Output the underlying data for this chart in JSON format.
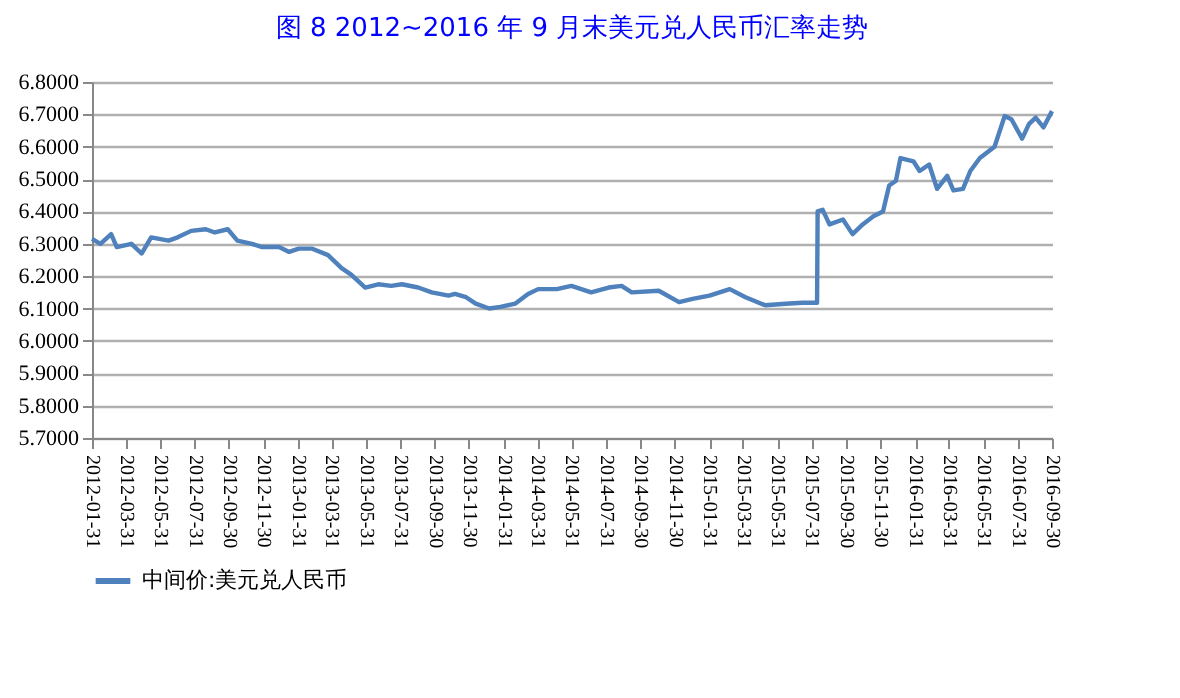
{
  "chart_data": {
    "type": "line",
    "title": "图 8   2012~2016 年 9 月末美元兑人民币汇率走势",
    "x": [
      "2012-01-31",
      "2012-02-15",
      "2012-03-05",
      "2012-03-15",
      "2012-04-10",
      "2012-04-28",
      "2012-05-15",
      "2012-06-15",
      "2012-07-01",
      "2012-07-25",
      "2012-08-20",
      "2012-09-05",
      "2012-09-28",
      "2012-10-15",
      "2012-11-10",
      "2012-11-28",
      "2012-12-28",
      "2013-01-15",
      "2013-02-01",
      "2013-02-25",
      "2013-03-25",
      "2013-04-18",
      "2013-05-05",
      "2013-05-30",
      "2013-06-22",
      "2013-07-15",
      "2013-08-03",
      "2013-09-01",
      "2013-09-25",
      "2013-10-25",
      "2013-11-05",
      "2013-11-25",
      "2013-12-12",
      "2014-01-05",
      "2014-01-25",
      "2014-02-20",
      "2014-03-15",
      "2014-04-02",
      "2014-05-05",
      "2014-05-31",
      "2014-07-05",
      "2014-08-05",
      "2014-08-28",
      "2014-09-15",
      "2014-11-02",
      "2014-12-08",
      "2015-01-01",
      "2015-01-31",
      "2015-03-08",
      "2015-04-05",
      "2015-05-10",
      "2015-06-15",
      "2015-07-15",
      "2015-08-10",
      "2015-08-11",
      "2015-08-20",
      "2015-09-01",
      "2015-09-25",
      "2015-10-12",
      "2015-10-30",
      "2015-11-18",
      "2015-12-05",
      "2015-12-16",
      "2015-12-28",
      "2016-01-05",
      "2016-01-28",
      "2016-02-08",
      "2016-02-25",
      "2016-03-10",
      "2016-03-28",
      "2016-04-08",
      "2016-04-25",
      "2016-05-08",
      "2016-05-25",
      "2016-06-20",
      "2016-07-08",
      "2016-07-20",
      "2016-08-08",
      "2016-08-20",
      "2016-09-01",
      "2016-09-15",
      "2016-09-30"
    ],
    "series": [
      {
        "name": "中间价:美元兑人民币",
        "color": "#4f81bd",
        "values": [
          6.315,
          6.3,
          6.33,
          6.29,
          6.3,
          6.27,
          6.32,
          6.31,
          6.32,
          6.34,
          6.345,
          6.335,
          6.345,
          6.31,
          6.3,
          6.29,
          6.29,
          6.275,
          6.285,
          6.285,
          6.265,
          6.225,
          6.205,
          6.165,
          6.175,
          6.17,
          6.175,
          6.165,
          6.15,
          6.14,
          6.145,
          6.135,
          6.115,
          6.1,
          6.105,
          6.115,
          6.145,
          6.16,
          6.16,
          6.17,
          6.15,
          6.165,
          6.17,
          6.15,
          6.155,
          6.12,
          6.13,
          6.14,
          6.16,
          6.135,
          6.11,
          6.115,
          6.118,
          6.118,
          6.4,
          6.405,
          6.36,
          6.375,
          6.33,
          6.36,
          6.385,
          6.4,
          6.48,
          6.495,
          6.565,
          6.555,
          6.525,
          6.545,
          6.47,
          6.51,
          6.465,
          6.47,
          6.525,
          6.565,
          6.6,
          6.695,
          6.685,
          6.625,
          6.67,
          6.69,
          6.66,
          6.71
        ]
      }
    ],
    "xlim": [
      "2012-01-31",
      "2016-09-30"
    ],
    "xticks": [
      "2012-01-31",
      "2012-03-31",
      "2012-05-31",
      "2012-07-31",
      "2012-09-30",
      "2012-11-30",
      "2013-01-31",
      "2013-03-31",
      "2013-05-31",
      "2013-07-31",
      "2013-09-30",
      "2013-11-30",
      "2014-01-31",
      "2014-03-31",
      "2014-05-31",
      "2014-07-31",
      "2014-09-30",
      "2014-11-30",
      "2015-01-31",
      "2015-03-31",
      "2015-05-31",
      "2015-07-31",
      "2015-09-30",
      "2015-11-30",
      "2016-01-31",
      "2016-03-31",
      "2016-05-31",
      "2016-07-31",
      "2016-09-30"
    ],
    "ylim": [
      5.7,
      6.8
    ],
    "yticks": [
      {
        "value": 5.7,
        "label": "5.7000"
      },
      {
        "value": 5.8,
        "label": "5.8000"
      },
      {
        "value": 5.9,
        "label": "5.9000"
      },
      {
        "value": 6.0,
        "label": "6.0000"
      },
      {
        "value": 6.1,
        "label": "6.1000"
      },
      {
        "value": 6.2,
        "label": "6.2000"
      },
      {
        "value": 6.3,
        "label": "6.3000"
      },
      {
        "value": 6.4,
        "label": "6.4000"
      },
      {
        "value": 6.5,
        "label": "6.5000"
      },
      {
        "value": 6.6,
        "label": "6.6000"
      },
      {
        "value": 6.7,
        "label": "6.7000"
      },
      {
        "value": 6.8,
        "label": "6.8000"
      }
    ],
    "grid": "y",
    "legend": "bottom",
    "marker": "none",
    "line_style": "solid"
  }
}
